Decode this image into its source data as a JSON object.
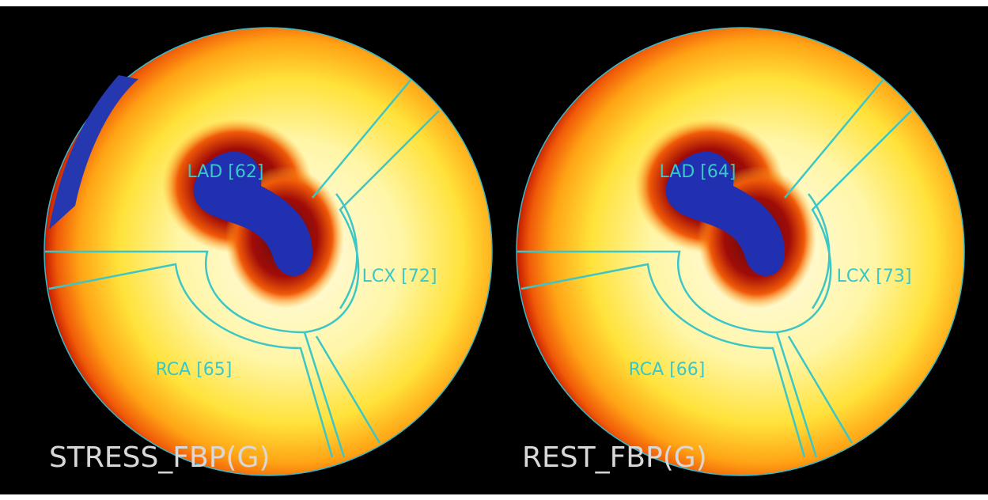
{
  "panels": [
    {
      "title": "STRESS_FBP(G)",
      "regions": [
        "LAD [62]",
        "LCX [72]",
        "RCA [65]"
      ]
    },
    {
      "title": "REST_FBP(G)",
      "regions": [
        "LAD [64]",
        "LCX [73]",
        "RCA [66]"
      ]
    }
  ]
}
